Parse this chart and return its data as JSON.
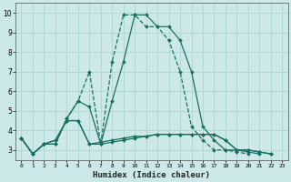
{
  "xlabel": "Humidex (Indice chaleur)",
  "bg_color": "#cce8e8",
  "line_color": "#1a7060",
  "grid_color": "#b0d8d8",
  "xlim": [
    -0.5,
    23.5
  ],
  "ylim": [
    2.5,
    10.5
  ],
  "xtick_labels": [
    "0",
    "1",
    "2",
    "3",
    "4",
    "5",
    "6",
    "7",
    "8",
    "9",
    "10",
    "11",
    "12",
    "13",
    "14",
    "15",
    "16",
    "17",
    "18",
    "19",
    "20",
    "21",
    "22",
    "23"
  ],
  "ytick_labels": [
    "3",
    "4",
    "5",
    "6",
    "7",
    "8",
    "9",
    "10"
  ],
  "yticks": [
    3,
    4,
    5,
    6,
    7,
    8,
    9,
    10
  ],
  "series": [
    {
      "x": [
        0,
        1,
        2,
        3,
        4,
        5,
        6,
        7,
        8,
        9,
        10,
        11,
        12,
        13,
        14,
        15,
        16,
        17,
        18,
        19,
        20,
        21,
        22
      ],
      "y": [
        3.6,
        2.8,
        3.3,
        3.3,
        4.6,
        5.5,
        7.0,
        3.3,
        7.5,
        9.9,
        9.9,
        9.3,
        9.3,
        8.6,
        7.0,
        4.2,
        3.5,
        3.0,
        3.0,
        2.9,
        2.8,
        null,
        null
      ],
      "style": "--",
      "marker": "D"
    },
    {
      "x": [
        0,
        1,
        2,
        3,
        4,
        5,
        6,
        7,
        8,
        9,
        10,
        11,
        12,
        13,
        14,
        15,
        16,
        17,
        18,
        19,
        20,
        21,
        22
      ],
      "y": [
        3.6,
        2.8,
        3.3,
        3.3,
        4.6,
        5.5,
        5.2,
        3.3,
        5.5,
        7.5,
        9.9,
        9.9,
        9.3,
        9.3,
        8.6,
        7.0,
        4.2,
        3.5,
        3.0,
        3.0,
        2.9,
        2.8,
        null
      ],
      "style": "-",
      "marker": "D"
    },
    {
      "x": [
        0,
        1,
        2,
        3,
        4,
        5,
        6,
        7,
        8,
        9,
        10,
        11,
        12,
        13,
        14,
        15,
        16,
        17,
        18,
        19,
        20,
        21,
        22
      ],
      "y": [
        3.6,
        2.8,
        3.3,
        3.5,
        4.5,
        4.5,
        3.3,
        3.3,
        3.4,
        3.5,
        3.6,
        3.7,
        3.8,
        3.8,
        3.8,
        3.8,
        3.8,
        3.8,
        3.5,
        3.0,
        3.0,
        2.9,
        2.8
      ],
      "style": "-",
      "marker": "D"
    },
    {
      "x": [
        0,
        1,
        2,
        3,
        4,
        5,
        6,
        7,
        8,
        9,
        10,
        11,
        12,
        13,
        14,
        15,
        16,
        17,
        18,
        19,
        20,
        21,
        22
      ],
      "y": [
        3.6,
        2.8,
        3.3,
        3.5,
        4.5,
        4.5,
        3.3,
        3.4,
        3.5,
        3.6,
        3.7,
        3.7,
        3.8,
        3.8,
        3.8,
        3.8,
        3.8,
        3.8,
        3.5,
        3.0,
        3.0,
        2.9,
        2.8
      ],
      "style": "-",
      "marker": "D"
    }
  ]
}
